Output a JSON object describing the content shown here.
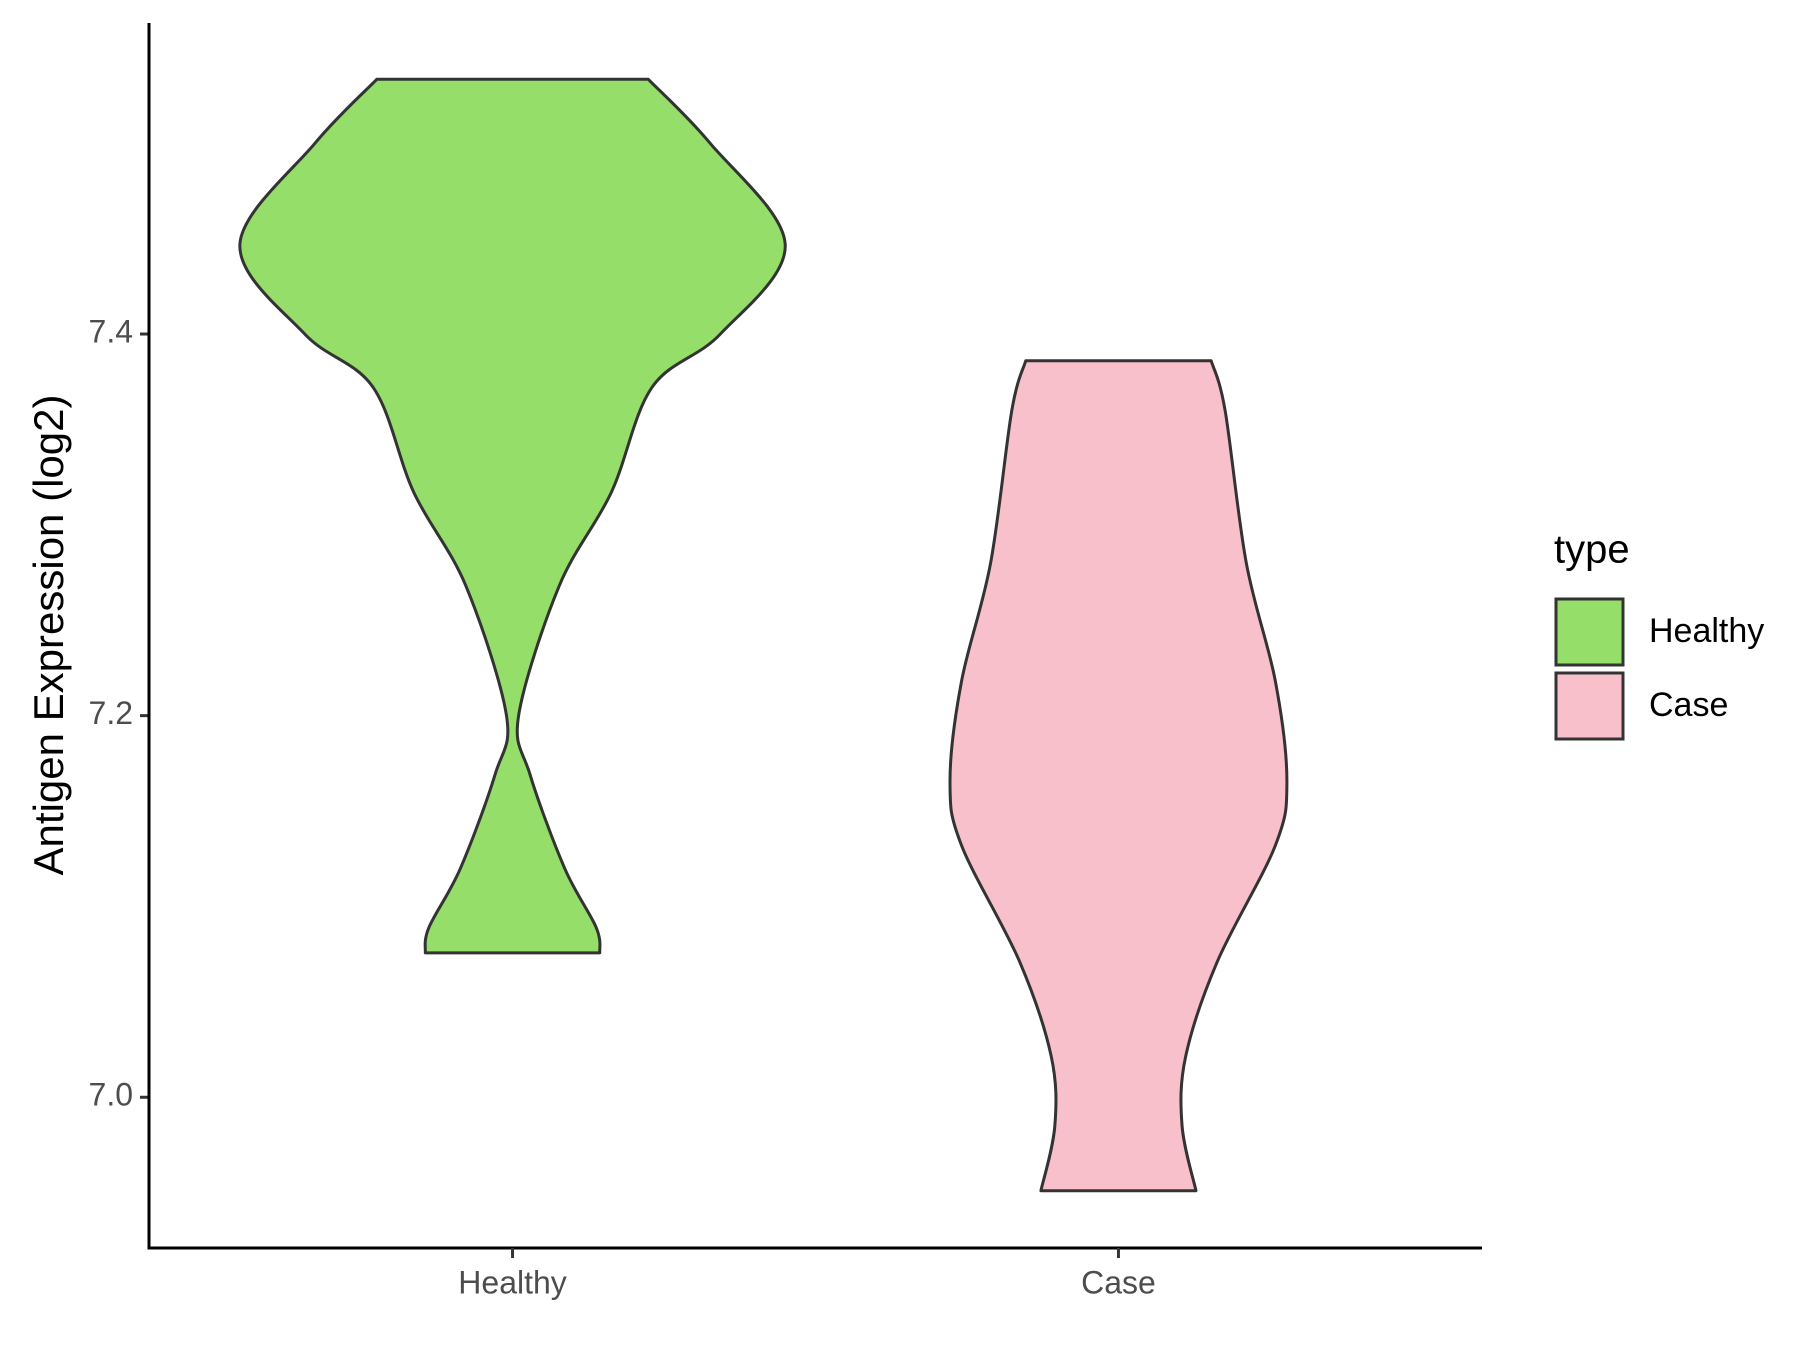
{
  "chart_data": {
    "type": "violin",
    "y_label": "Antigen Expression (log2)",
    "categories": [
      "Healthy",
      "Case"
    ],
    "legend_title": "type",
    "legend_position": "right",
    "ylim": [
      6.921,
      7.563
    ],
    "yticks": [
      {
        "value": 7.0,
        "label": "7.0"
      },
      {
        "value": 7.2,
        "label": "7.2"
      },
      {
        "value": 7.4,
        "label": "7.4"
      }
    ],
    "grid": false,
    "series": [
      {
        "name": "Healthy",
        "color": "#95DE6A",
        "y": [
          7.5335,
          7.5,
          7.447,
          7.4,
          7.372,
          7.317,
          7.268,
          7.2,
          7.169,
          7.12,
          7.089,
          7.0757
        ],
        "half_width": [
          0.224,
          0.326,
          0.45,
          0.343,
          0.23,
          0.163,
          0.077,
          0.01,
          0.029,
          0.086,
          0.138,
          0.144
        ]
      },
      {
        "name": "Case",
        "color": "#F7C0CB",
        "y": [
          7.386,
          7.36,
          7.28,
          7.218,
          7.166,
          7.132,
          7.071,
          7.0215,
          6.985,
          6.951
        ],
        "half_width": [
          0.153,
          0.176,
          0.211,
          0.259,
          0.278,
          0.259,
          0.163,
          0.111,
          0.105,
          0.128
        ]
      }
    ]
  }
}
